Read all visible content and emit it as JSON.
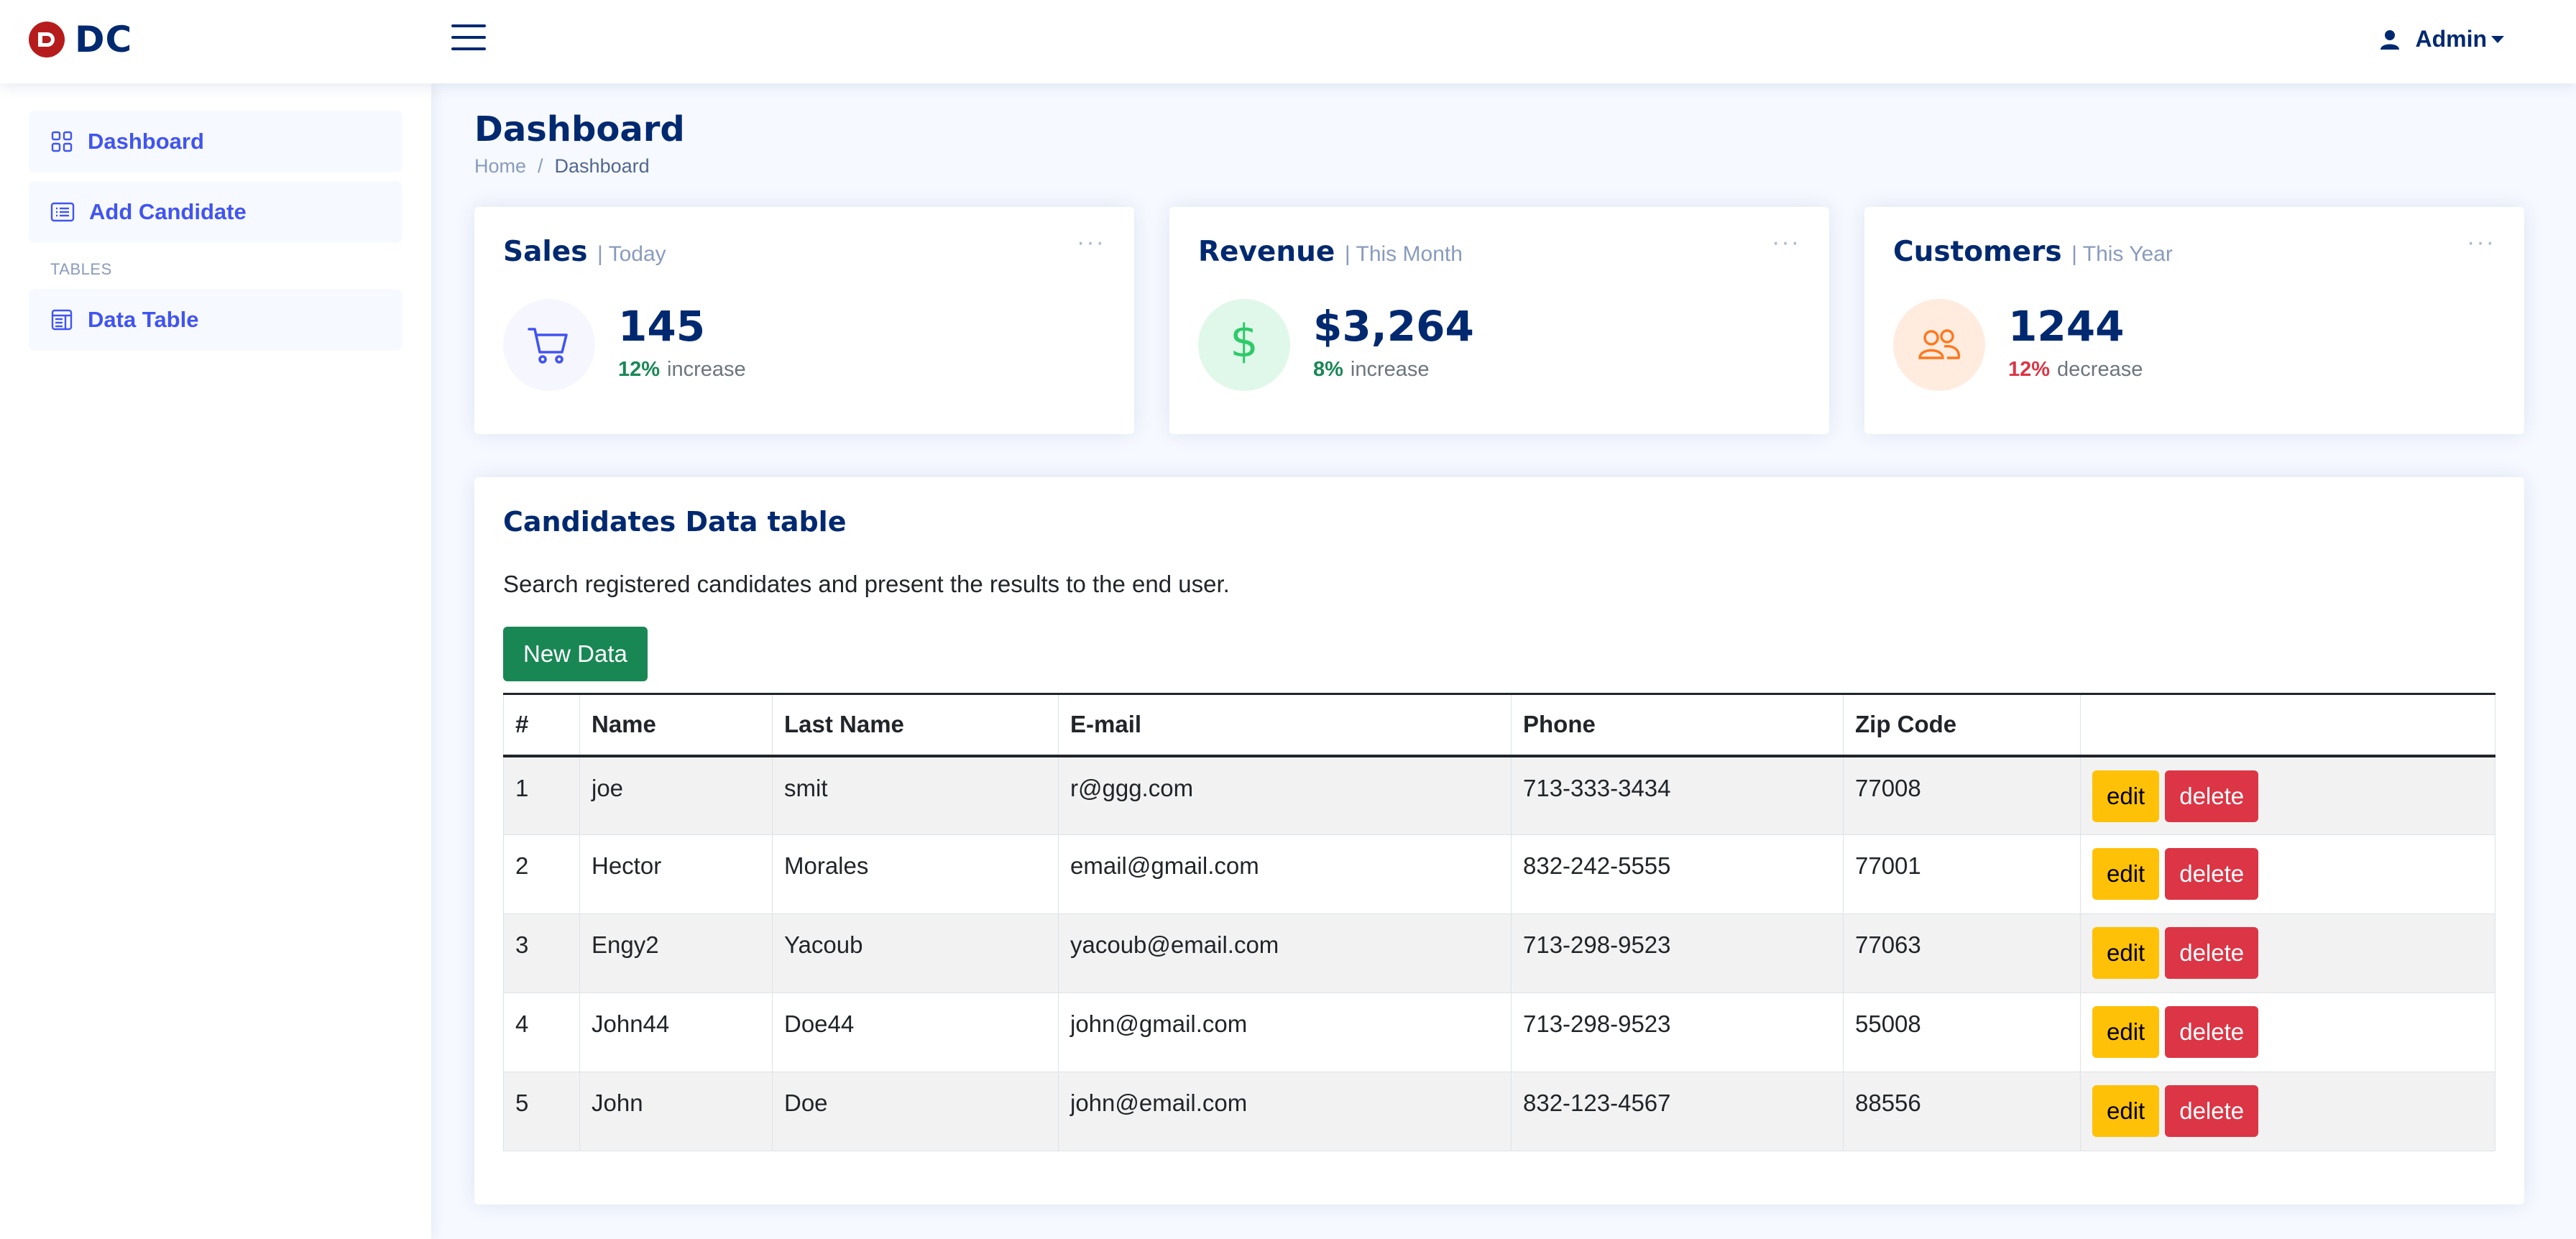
{
  "header": {
    "logo_text": "DC",
    "admin_label": "Admin"
  },
  "sidebar": {
    "items": [
      {
        "label": "Dashboard",
        "icon": "grid-icon"
      },
      {
        "label": "Add Candidate",
        "icon": "card-list-icon"
      }
    ],
    "section_heading": "TABLES",
    "section_items": [
      {
        "label": "Data Table",
        "icon": "layout-text-window-icon"
      }
    ]
  },
  "page": {
    "title": "Dashboard",
    "breadcrumb": [
      "Home",
      "/",
      "Dashboard"
    ]
  },
  "stats": [
    {
      "title": "Sales",
      "period": "| Today",
      "value": "145",
      "pct": "12%",
      "trend": "increase",
      "icon": "cart-icon",
      "icon_color": "#4154f1",
      "icon_bg": "#f6f6fe",
      "pct_color": "#198754"
    },
    {
      "title": "Revenue",
      "period": "| This Month",
      "value": "$3,264",
      "pct": "8%",
      "trend": "increase",
      "icon": "dollar-icon",
      "icon_color": "#2eca6a",
      "icon_bg": "#e0f8e9",
      "pct_color": "#198754"
    },
    {
      "title": "Customers",
      "period": "| This Year",
      "value": "1244",
      "pct": "12%",
      "trend": "decrease",
      "icon": "people-icon",
      "icon_color": "#ff771d",
      "icon_bg": "#ffecdf",
      "pct_color": "#dc3545"
    }
  ],
  "table_card": {
    "title": "Candidates Data table",
    "description": "Search registered candidates and present the results to the end user.",
    "new_button": "New Data",
    "columns": [
      "#",
      "Name",
      "Last Name",
      "E-mail",
      "Phone",
      "Zip Code",
      ""
    ],
    "rows": [
      [
        "1",
        "joe",
        "smit",
        "r@ggg.com",
        "713-333-3434",
        "77008"
      ],
      [
        "2",
        "Hector",
        "Morales",
        "email@gmail.com",
        "832-242-5555",
        "77001"
      ],
      [
        "3",
        "Engy2",
        "Yacoub",
        "yacoub@email.com",
        "713-298-9523",
        "77063"
      ],
      [
        "4",
        "John44",
        "Doe44",
        "john@gmail.com",
        "713-298-9523",
        "55008"
      ],
      [
        "5",
        "John",
        "Doe",
        "john@email.com",
        "832-123-4567",
        "88556"
      ]
    ],
    "edit_label": "edit",
    "delete_label": "delete"
  }
}
